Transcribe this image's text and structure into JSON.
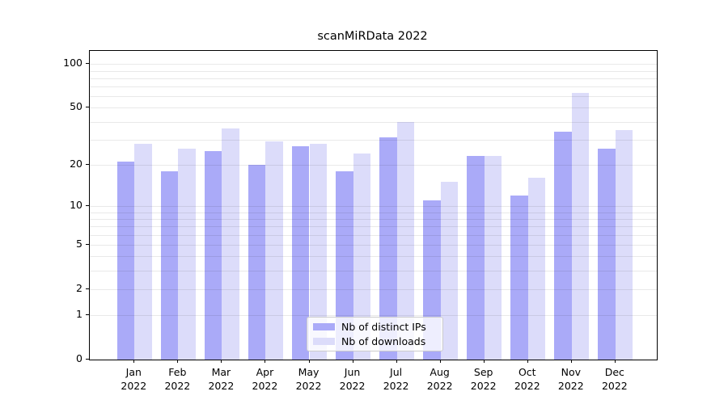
{
  "title": "scanMiRData 2022",
  "chart_data": {
    "type": "bar",
    "title": "scanMiRData 2022",
    "categories": [
      "Jan",
      "Feb",
      "Mar",
      "Apr",
      "May",
      "Jun",
      "Jul",
      "Aug",
      "Sep",
      "Oct",
      "Nov",
      "Dec"
    ],
    "category_year": "2022",
    "series": [
      {
        "name": "Nb of distinct IPs",
        "color": "#aaaaf8",
        "values": [
          21,
          18,
          25,
          20,
          27,
          18,
          31,
          11,
          23,
          12,
          34,
          26
        ]
      },
      {
        "name": "Nb of downloads",
        "color": "#dcdcfa",
        "values": [
          28,
          26,
          36,
          29,
          28,
          24,
          40,
          15,
          23,
          16,
          63,
          35
        ]
      }
    ],
    "yscale": "log1p",
    "ylim": [
      0,
      123
    ],
    "ytick_values": [
      0,
      1,
      2,
      5,
      10,
      20,
      50,
      100
    ],
    "ytick_labels": [
      "0",
      "1",
      "2",
      "5",
      "10",
      "20",
      "50",
      "100"
    ],
    "minor_gridline_values": [
      1,
      2,
      3,
      4,
      5,
      6,
      7,
      8,
      9,
      10,
      20,
      30,
      40,
      50,
      60,
      70,
      80,
      90,
      100
    ],
    "grid": true,
    "legend_position": "lower center",
    "xlabel": "",
    "ylabel": ""
  },
  "colors": {
    "bar_dark": "#aaaaf8",
    "bar_light": "#dcdcfa",
    "gridline": "rgba(0,0,0,0.085)",
    "spine": "#000000",
    "legend_border": "#cccccc"
  }
}
